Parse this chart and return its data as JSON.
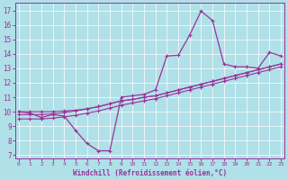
{
  "xlabel": "Windchill (Refroidissement éolien,°C)",
  "x_ticks": [
    0,
    1,
    2,
    3,
    4,
    5,
    6,
    7,
    8,
    9,
    10,
    11,
    12,
    13,
    14,
    15,
    16,
    17,
    18,
    19,
    20,
    21,
    22,
    23
  ],
  "y_ticks": [
    7,
    8,
    9,
    10,
    11,
    12,
    13,
    14,
    15,
    16,
    17
  ],
  "ylim": [
    6.8,
    17.5
  ],
  "xlim": [
    -0.3,
    23.3
  ],
  "bg_color": "#b0e0e8",
  "line_color": "#993399",
  "series1_x": [
    0,
    1,
    2,
    3,
    4,
    5,
    6,
    7,
    8,
    9,
    10,
    11,
    12,
    13,
    14,
    15,
    16,
    17,
    18,
    19,
    20,
    21,
    22,
    23
  ],
  "series1_y": [
    10.0,
    9.9,
    9.6,
    9.8,
    9.7,
    8.7,
    7.8,
    7.3,
    7.3,
    11.0,
    11.1,
    11.2,
    11.5,
    13.85,
    13.9,
    15.3,
    16.95,
    16.3,
    13.3,
    13.1,
    13.1,
    13.0,
    14.1,
    13.85
  ],
  "series2_x": [
    0,
    1,
    2,
    3,
    4,
    5,
    6,
    7,
    8,
    9,
    10,
    11,
    12,
    13,
    14,
    15,
    16,
    17,
    18,
    19,
    20,
    21,
    22,
    23
  ],
  "series2_y": [
    10.0,
    10.0,
    10.0,
    10.0,
    10.05,
    10.1,
    10.2,
    10.35,
    10.55,
    10.75,
    10.85,
    11.0,
    11.1,
    11.3,
    11.5,
    11.7,
    11.9,
    12.1,
    12.3,
    12.5,
    12.7,
    12.9,
    13.1,
    13.3
  ],
  "series3_x": [
    0,
    1,
    2,
    3,
    4,
    5,
    6,
    7,
    8,
    9,
    10,
    11,
    12,
    13,
    14,
    15,
    16,
    17,
    18,
    19,
    20,
    21,
    22,
    23
  ],
  "series3_y": [
    9.5,
    9.5,
    9.5,
    9.55,
    9.65,
    9.75,
    9.9,
    10.05,
    10.25,
    10.45,
    10.6,
    10.75,
    10.9,
    11.1,
    11.3,
    11.5,
    11.7,
    11.9,
    12.1,
    12.3,
    12.5,
    12.7,
    12.9,
    13.1
  ],
  "series4_x": [
    0,
    1,
    2,
    3,
    4,
    5,
    6,
    7,
    8,
    9,
    10,
    11,
    12,
    13,
    14,
    15,
    16,
    17,
    18,
    19,
    20,
    21,
    22,
    23
  ],
  "series4_y": [
    9.8,
    9.8,
    9.8,
    9.85,
    9.95,
    10.05,
    10.2,
    10.35,
    10.55,
    10.75,
    10.85,
    11.0,
    11.1,
    11.3,
    11.5,
    11.7,
    11.9,
    12.1,
    12.3,
    12.5,
    12.7,
    12.9,
    13.1,
    13.3
  ]
}
